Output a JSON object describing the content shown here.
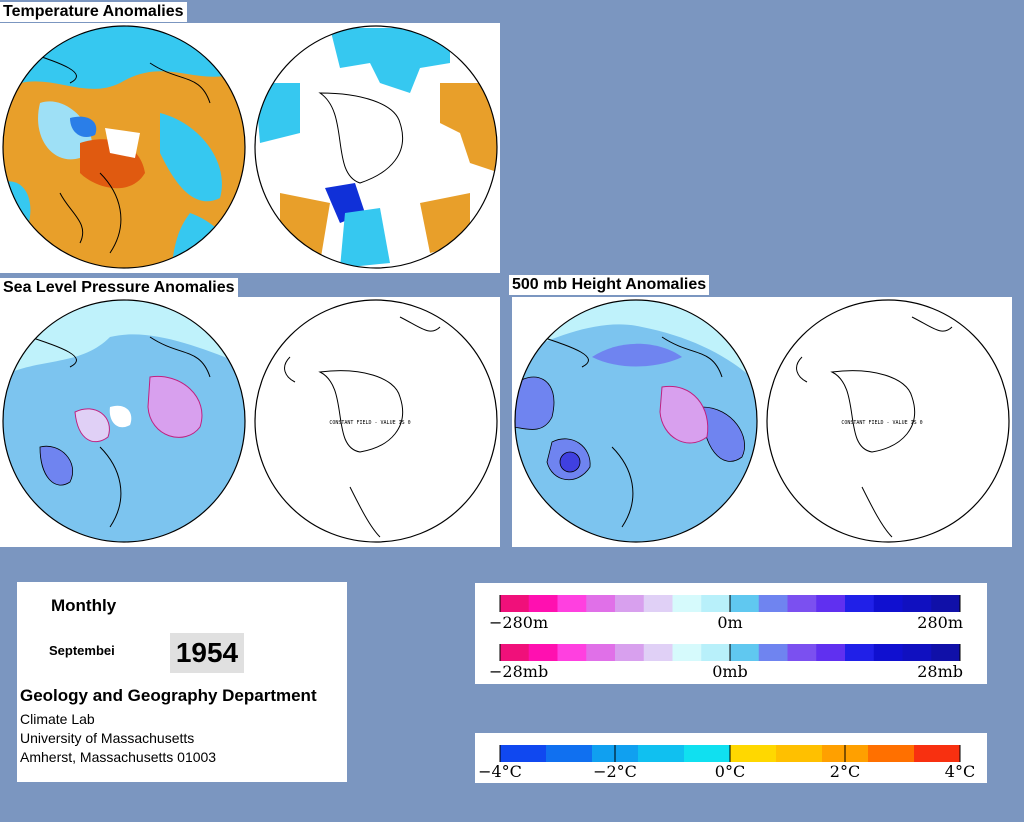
{
  "sections": {
    "temperature_title": "Temperature Anomalies",
    "slp_title": "Sea Level Pressure Anomalies",
    "height_title": "500 mb Height Anomalies",
    "constant_field_note": "CONSTANT FIELD - VALUE IS 0"
  },
  "info": {
    "period": "Monthly",
    "month": "Septembei",
    "year": "1954",
    "department": "Geology and Geography Department",
    "lab": "Climate Lab",
    "university": "University of Massachusetts",
    "address": "Amherst, Massachusetts 01003"
  },
  "legends": {
    "height": {
      "min": "−280m",
      "mid": "0m",
      "max": "280m",
      "colors": [
        "#f0107a",
        "#ff10b0",
        "#ff40e0",
        "#e070e8",
        "#d8a0ee",
        "#e0d0f6",
        "#d6fafc",
        "#b8f0fa",
        "#60c8f0",
        "#6f84f0",
        "#7b50f0",
        "#6030f0",
        "#2020e8",
        "#1010d0",
        "#1010c0",
        "#1010a8"
      ]
    },
    "pressure": {
      "min": "−28mb",
      "mid": "0mb",
      "max": "28mb",
      "colors": [
        "#f0107a",
        "#ff10b0",
        "#ff40e0",
        "#e070e8",
        "#d8a0ee",
        "#e0d0f6",
        "#d6fafc",
        "#b8f0fa",
        "#60c8f0",
        "#6f84f0",
        "#7b50f0",
        "#6030f0",
        "#2020e8",
        "#1010d0",
        "#1010c0",
        "#1010a8"
      ]
    },
    "temperature": {
      "labels": [
        "−4°C",
        "−2°C",
        "0°C",
        "2°C",
        "4°C"
      ],
      "colors": [
        "#1048f0",
        "#1070f0",
        "#10a0f0",
        "#10c0f0",
        "#10e0f0",
        "#ffd800",
        "#ffc000",
        "#ffa000",
        "#ff7000",
        "#f83010"
      ]
    }
  }
}
